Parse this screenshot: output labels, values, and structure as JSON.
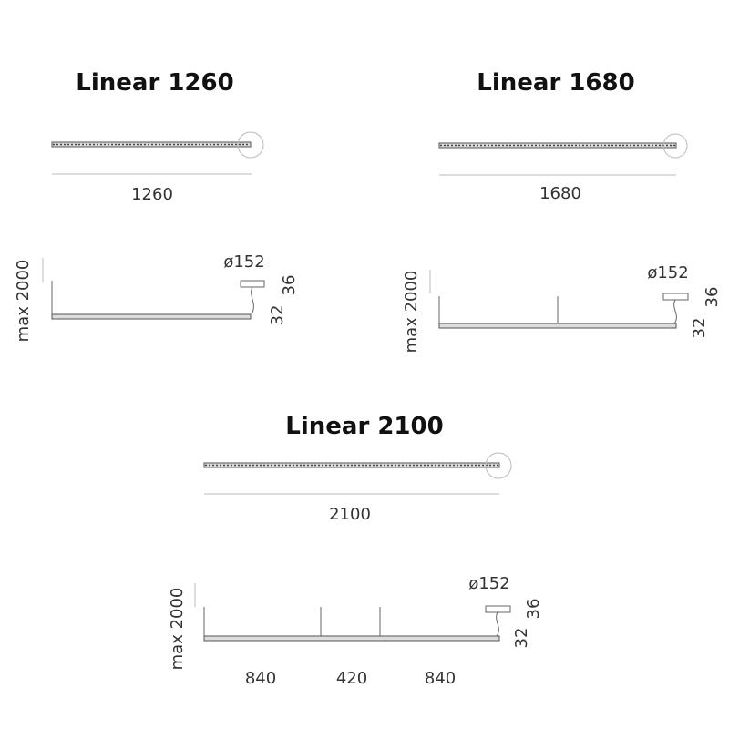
{
  "products": [
    {
      "title": "Linear 1260",
      "length": "1260",
      "height_label": "max 2000",
      "canopy_label": "ø152",
      "canopy_height": "36",
      "profile_height": "32"
    },
    {
      "title": "Linear 1680",
      "length": "1680",
      "height_label": "max 2000",
      "canopy_label": "ø152",
      "canopy_height": "36",
      "profile_height": "32"
    },
    {
      "title": "Linear 2100",
      "length": "2100",
      "height_label": "max 2000",
      "canopy_label": "ø152",
      "canopy_height": "36",
      "profile_height": "32",
      "spacings": [
        "840",
        "420",
        "840"
      ]
    }
  ]
}
